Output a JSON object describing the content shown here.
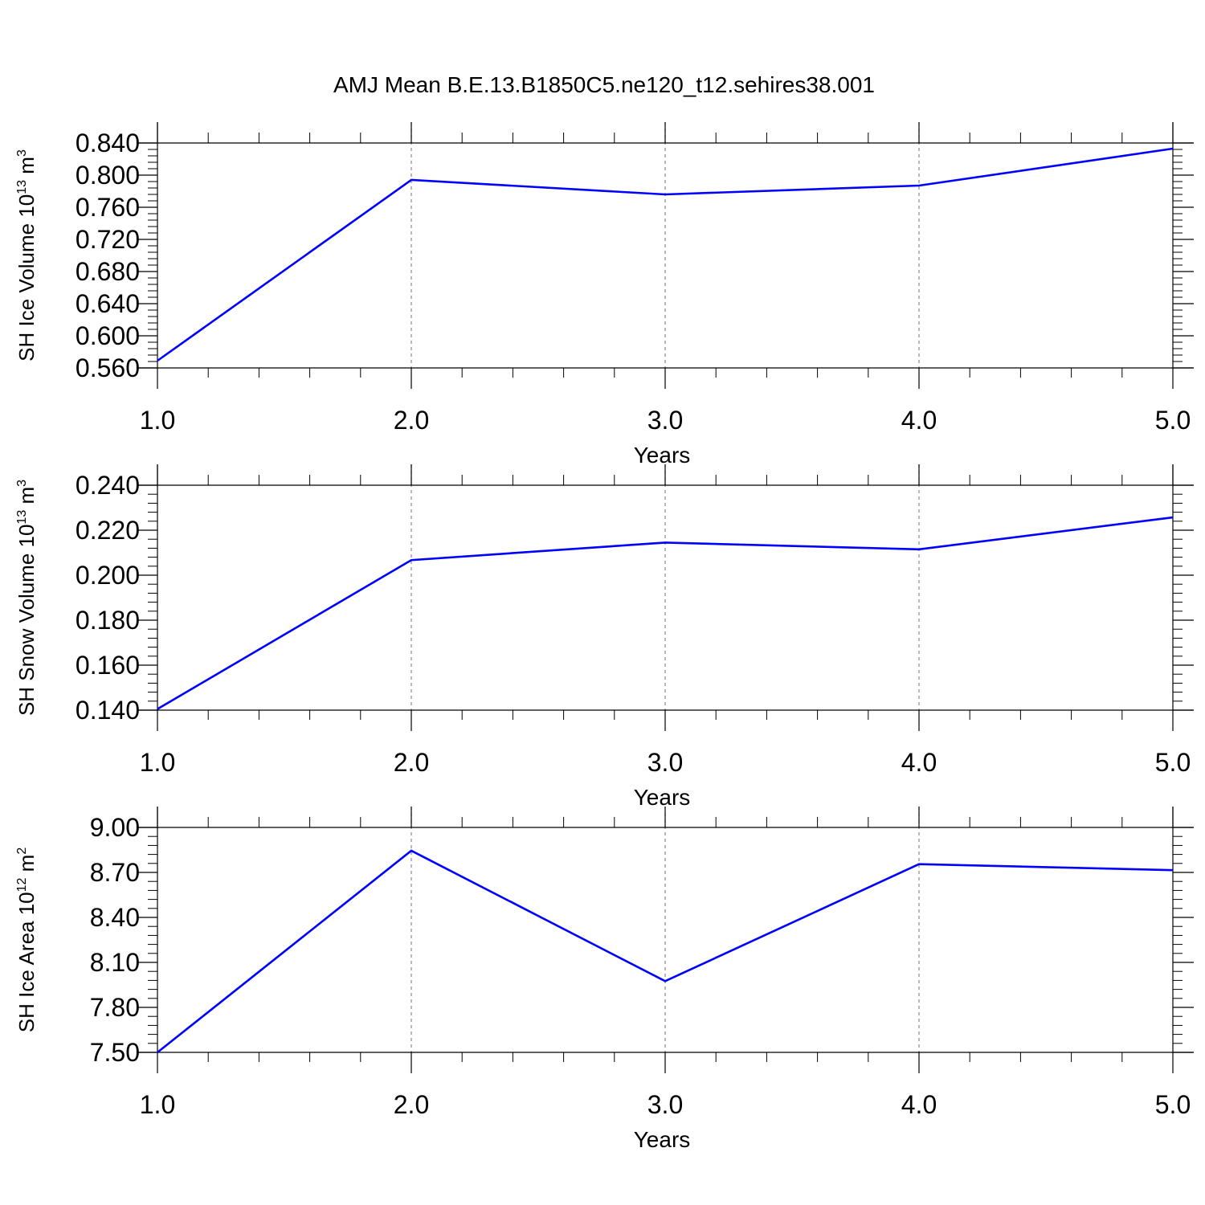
{
  "title": "AMJ Mean B.E.13.B1850C5.ne120_t12.sehires38.001",
  "chart_data": [
    {
      "type": "line",
      "title": "",
      "xlabel": "Years",
      "ylabel": "SH Ice Volume 10",
      "ylabel_sup": "13",
      "ylabel_unit": " m",
      "ylabel_unit_sup": "3",
      "xlim": [
        1,
        5
      ],
      "ylim": [
        0.56,
        0.84
      ],
      "x_ticks": [
        "1.0",
        "2.0",
        "3.0",
        "4.0",
        "5.0"
      ],
      "y_ticks": [
        "0.560",
        "0.600",
        "0.640",
        "0.680",
        "0.720",
        "0.760",
        "0.800",
        "0.840"
      ],
      "grid": "vertical dashed at x-ticks",
      "series": [
        {
          "x": [
            1,
            2,
            3,
            4,
            5
          ],
          "values": [
            0.569,
            0.794,
            0.776,
            0.787,
            0.833
          ],
          "color": "#0000ff"
        }
      ]
    },
    {
      "type": "line",
      "title": "",
      "xlabel": "Years",
      "ylabel": "SH Snow Volume 10",
      "ylabel_sup": "13",
      "ylabel_unit": " m",
      "ylabel_unit_sup": "3",
      "xlim": [
        1,
        5
      ],
      "ylim": [
        0.14,
        0.24
      ],
      "x_ticks": [
        "1.0",
        "2.0",
        "3.0",
        "4.0",
        "5.0"
      ],
      "y_ticks": [
        "0.140",
        "0.160",
        "0.180",
        "0.200",
        "0.220",
        "0.240"
      ],
      "grid": "vertical dashed at x-ticks",
      "series": [
        {
          "x": [
            1,
            2,
            3,
            4,
            5
          ],
          "values": [
            0.1405,
            0.2067,
            0.2145,
            0.2115,
            0.2257
          ],
          "color": "#0000ff"
        }
      ]
    },
    {
      "type": "line",
      "title": "",
      "xlabel": "Years",
      "ylabel": "SH Ice Area 10",
      "ylabel_sup": "12",
      "ylabel_unit": " m",
      "ylabel_unit_sup": "2",
      "xlim": [
        1,
        5
      ],
      "ylim": [
        7.5,
        9.0
      ],
      "x_ticks": [
        "1.0",
        "2.0",
        "3.0",
        "4.0",
        "5.0"
      ],
      "y_ticks": [
        "7.50",
        "7.80",
        "8.10",
        "8.40",
        "8.70",
        "9.00"
      ],
      "grid": "vertical dashed at x-ticks",
      "series": [
        {
          "x": [
            1,
            2,
            3,
            4,
            5
          ],
          "values": [
            7.5,
            8.845,
            7.975,
            8.755,
            8.715
          ],
          "color": "#0000ff"
        }
      ]
    }
  ]
}
